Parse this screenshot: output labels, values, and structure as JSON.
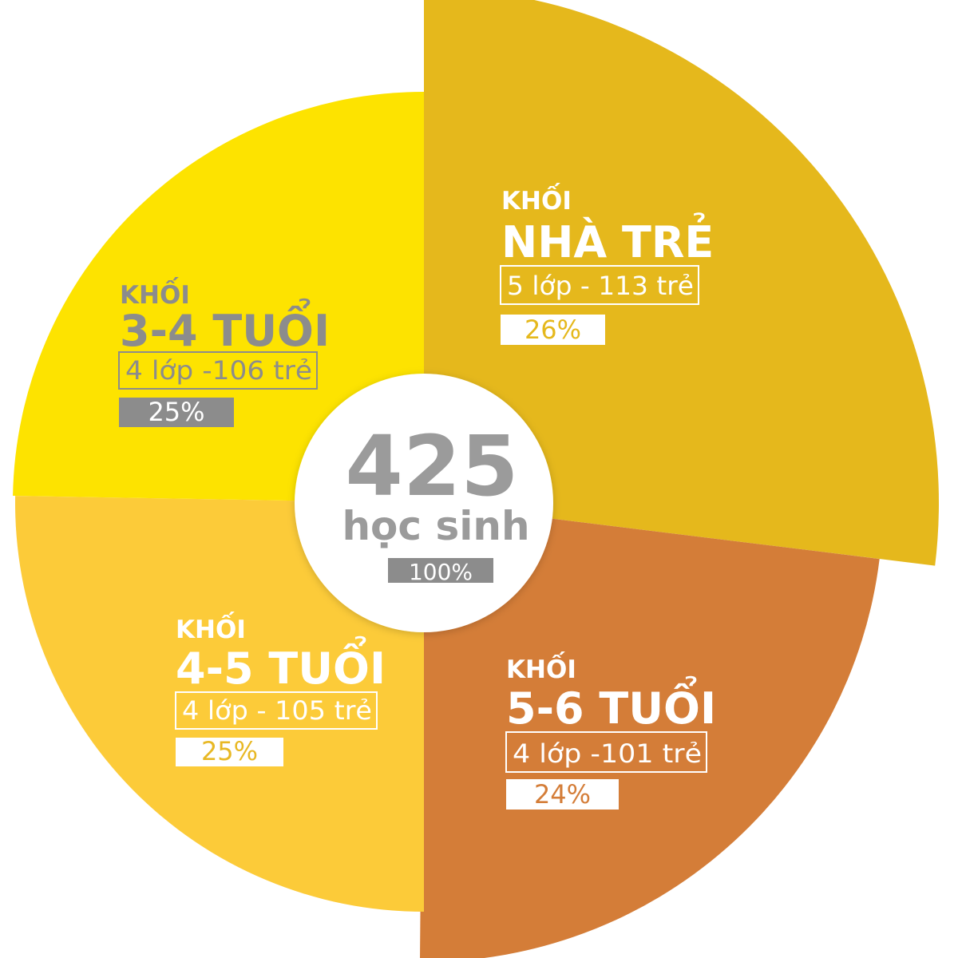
{
  "chart_data": {
    "type": "pie",
    "total": {
      "value": "425",
      "unit": "học sinh",
      "percent": "100%"
    },
    "slices": [
      {
        "prefix": "KHỐI",
        "name": "NHÀ TRẺ",
        "detail": "5 lớp - 113 trẻ",
        "classes": 5,
        "value": 113,
        "percent_label": "26%",
        "percent": 26,
        "color": "#e5b81c"
      },
      {
        "prefix": "KHỐI",
        "name": "5-6 TUỔI",
        "detail": "4 lớp -101 trẻ",
        "classes": 4,
        "value": 101,
        "percent_label": "24%",
        "percent": 24,
        "color": "#d47d38"
      },
      {
        "prefix": "KHỐI",
        "name": "4-5 TUỔI",
        "detail": "4 lớp - 105 trẻ",
        "classes": 4,
        "value": 105,
        "percent_label": "25%",
        "percent": 25,
        "color": "#fccb39"
      },
      {
        "prefix": "KHỐI",
        "name": "3-4 TUỔI",
        "detail": "4 lớp -106 trẻ",
        "classes": 4,
        "value": 106,
        "percent_label": "25%",
        "percent": 25,
        "color": "#fde300"
      }
    ],
    "label_colors": {
      "light_text": "#ffffff",
      "gray": "#8c8c8c",
      "center_circle": "#ffffff"
    }
  }
}
